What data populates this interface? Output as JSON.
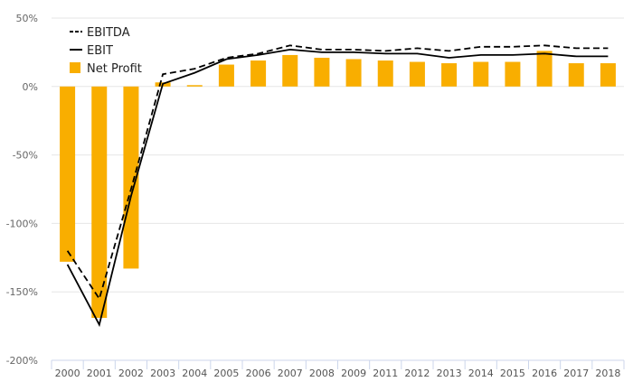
{
  "chart_data": {
    "type": "bar+line",
    "title": "",
    "xlabel": "",
    "ylabel": "",
    "ylim": [
      -200,
      50
    ],
    "ytick_step": 50,
    "y_unit": "%",
    "categories": [
      "2000",
      "2001",
      "2002",
      "2003",
      "2004",
      "2005",
      "2006",
      "2007",
      "2008",
      "2009",
      "2011",
      "2012",
      "2013",
      "2014",
      "2015",
      "2016",
      "2017",
      "2018"
    ],
    "series": [
      {
        "name": "EBITDA",
        "kind": "line",
        "style": "dashed",
        "color": "#000000",
        "values": [
          -120,
          -155,
          -75,
          9,
          13,
          21,
          24,
          30,
          27,
          27,
          26,
          28,
          26,
          29,
          29,
          30,
          28,
          28
        ]
      },
      {
        "name": "EBIT",
        "kind": "line",
        "style": "solid",
        "color": "#000000",
        "values": [
          -130,
          -174,
          -80,
          2,
          10,
          20,
          23,
          27,
          25,
          25,
          24,
          24,
          21,
          23,
          23,
          24,
          22,
          22
        ]
      },
      {
        "name": "Net Profit",
        "kind": "bar",
        "color": "#f9ae00",
        "values": [
          -128,
          -169,
          -133,
          3,
          1,
          16,
          19,
          23,
          21,
          20,
          19,
          18,
          17,
          18,
          18,
          26,
          17,
          17
        ]
      }
    ],
    "legend_position": "top-left",
    "grid": "horizontal"
  }
}
